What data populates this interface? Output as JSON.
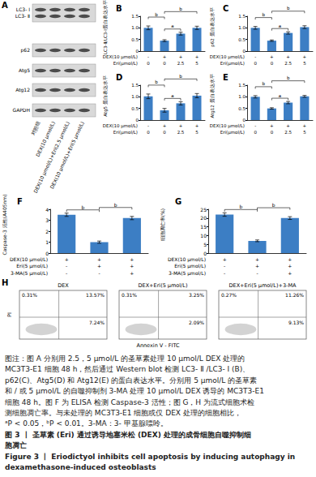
{
  "blot": {
    "title": "A",
    "bands": [
      "LC3- Ⅰ",
      "LC3- Ⅱ",
      "p62",
      "Atg5",
      "Atg12",
      "GAPDH"
    ],
    "lanes": [
      "对照组",
      "DEX(10 μmol/L)",
      "DEX(10 μmol/L)+Eri(2.5 μmol/L)",
      "DEX(10 μmol/L)+Eri(5 μmol/L)"
    ]
  },
  "chart_data": [
    {
      "type": "bar",
      "title": "B",
      "ylabel": "LC3-Ⅱ/LC3-Ⅰ蛋白表达水平",
      "categories": [
        null,
        null,
        null,
        null
      ],
      "conditions": [
        {
          "label": "DEX(10 μmol/L)",
          "values": [
            "-",
            "+",
            "+",
            "+"
          ]
        },
        {
          "label": "Eri(μmol/L)",
          "values": [
            "0",
            "0",
            "2.5",
            "5"
          ]
        }
      ],
      "values": [
        1.0,
        0.45,
        0.75,
        1.0
      ],
      "errors": [
        0.08,
        0.04,
        0.06,
        0.07
      ],
      "color": "#3c7ec4",
      "ylim": [
        0,
        1.5
      ],
      "yticks": [
        0,
        0.5,
        {
          "value": 1,
          "label": "1.0"
        },
        1.5
      ],
      "grid": false,
      "annotations": [
        {
          "from": 1,
          "to": 2,
          "label": "a"
        },
        {
          "from": 0,
          "to": 1,
          "label": "b"
        },
        {
          "from": 1,
          "to": 3,
          "label": "b"
        }
      ]
    },
    {
      "type": "bar",
      "title": "C",
      "ylabel": "p62 蛋白表达水平",
      "categories": [
        null,
        null,
        null,
        null
      ],
      "conditions": [
        {
          "label": "DEX(10 μmol/L)",
          "values": [
            "-",
            "+",
            "+",
            "+"
          ]
        },
        {
          "label": "Eri(μmol/L)",
          "values": [
            "0",
            "0",
            "2.5",
            "5"
          ]
        }
      ],
      "values": [
        1.0,
        0.45,
        0.78,
        1.03
      ],
      "errors": [
        0.06,
        0.03,
        0.05,
        0.06
      ],
      "color": "#3c7ec4",
      "ylim": [
        0,
        1.5
      ],
      "yticks": [
        0,
        0.5,
        {
          "value": 1,
          "label": "1.0"
        },
        1.5
      ],
      "grid": false,
      "annotations": [
        {
          "from": 1,
          "to": 2,
          "label": "a"
        },
        {
          "from": 0,
          "to": 1,
          "label": "b"
        },
        {
          "from": 1,
          "to": 3,
          "label": "b"
        }
      ]
    },
    {
      "type": "bar",
      "title": "D",
      "ylabel": "Atg5 蛋白表达水平",
      "categories": [
        null,
        null,
        null,
        null
      ],
      "conditions": [
        {
          "label": "DEX(10 μmol/L)",
          "values": [
            "-",
            "+",
            "+",
            "+"
          ]
        },
        {
          "label": "Eri(μmol/L)",
          "values": [
            "0",
            "0",
            "2.5",
            "5"
          ]
        }
      ],
      "values": [
        1.02,
        0.42,
        0.72,
        1.05
      ],
      "errors": [
        0.1,
        0.08,
        0.07,
        0.09
      ],
      "color": "#3c7ec4",
      "ylim": [
        0,
        1.5
      ],
      "yticks": [
        0,
        0.5,
        {
          "value": 1,
          "label": "1.0"
        },
        1.5
      ],
      "grid": false,
      "annotations": [
        {
          "from": 1,
          "to": 2,
          "label": "a"
        },
        {
          "from": 0,
          "to": 1,
          "label": "b"
        },
        {
          "from": 1,
          "to": 3,
          "label": "b"
        }
      ]
    },
    {
      "type": "bar",
      "title": "E",
      "ylabel": "Atg12 蛋白表达水平",
      "categories": [
        null,
        null,
        null,
        null
      ],
      "conditions": [
        {
          "label": "DEX(10 μmol/L)",
          "values": [
            "-",
            "+",
            "+",
            "+"
          ]
        },
        {
          "label": "Eri(μmol/L)",
          "values": [
            "0",
            "0",
            "2.5",
            "5"
          ]
        }
      ],
      "values": [
        1.0,
        0.5,
        0.75,
        1.02
      ],
      "errors": [
        0.05,
        0.03,
        0.05,
        0.04
      ],
      "color": "#3c7ec4",
      "ylim": [
        0,
        1.5
      ],
      "yticks": [
        0,
        0.5,
        {
          "value": 1,
          "label": "1.0"
        },
        1.5
      ],
      "grid": false,
      "annotations": [
        {
          "from": 1,
          "to": 2,
          "label": "a"
        },
        {
          "from": 0,
          "to": 1,
          "label": "b"
        },
        {
          "from": 1,
          "to": 3,
          "label": "b"
        }
      ]
    },
    {
      "type": "bar",
      "title": "F",
      "ylabel": "Caspase-3 活性(A405nm)",
      "categories": [
        null,
        null,
        null
      ],
      "conditions": [
        {
          "label": "DEX(10 μmol/L)",
          "values": [
            "+",
            "+",
            "+"
          ]
        },
        {
          "label": "Eri(5 μmol/L)",
          "values": [
            "-",
            "+",
            "+"
          ]
        },
        {
          "label": "3-MA(5 μmol/L)",
          "values": [
            "-",
            "-",
            "+"
          ]
        }
      ],
      "values": [
        3.5,
        1.0,
        3.2
      ],
      "errors": [
        0.15,
        0.1,
        0.15
      ],
      "color": "#3c7ec4",
      "ylim": [
        0,
        4
      ],
      "yticks": [
        0,
        1,
        2,
        3,
        4
      ],
      "grid": false,
      "annotations": [
        {
          "from": 0,
          "to": 1,
          "label": "b"
        },
        {
          "from": 1,
          "to": 2,
          "label": "b"
        }
      ]
    },
    {
      "type": "bar",
      "title": "G",
      "ylabel": "细胞凋亡率(%)",
      "categories": [
        null,
        null,
        null
      ],
      "conditions": [
        {
          "label": "DEX(10 μmol/L)",
          "values": [
            "+",
            "+",
            "+"
          ]
        },
        {
          "label": "Eri(5 μmol/L)",
          "values": [
            "-",
            "+",
            "+"
          ]
        },
        {
          "label": "3-MA(5 μmol/L)",
          "values": [
            "-",
            "-",
            "+"
          ]
        }
      ],
      "values": [
        22,
        7,
        20
      ],
      "errors": [
        1,
        0.5,
        0.8
      ],
      "color": "#3c7ec4",
      "ylim": [
        0,
        25
      ],
      "yticks": [
        0,
        5,
        10,
        15,
        20,
        25
      ],
      "grid": false,
      "annotations": [
        {
          "from": 0,
          "to": 1,
          "label": "b"
        },
        {
          "from": 1,
          "to": 2,
          "label": "b"
        }
      ]
    }
  ],
  "flow_cytometry": {
    "title": "H",
    "ylabel": "PI",
    "xlabel": "Annexin V - FITC",
    "plots": [
      {
        "title": "DEX",
        "upper_left": "0.31%",
        "upper_right": "13.57%",
        "lower_right": "7.24%"
      },
      {
        "title": "DEX+Eri(5 μmol/L)",
        "upper_left": "0.31%",
        "upper_right": "3.25%",
        "lower_right": "2.09%"
      },
      {
        "title": "DEX+Eri(5 μmol/L)+3-MA",
        "upper_left": "0.27%",
        "upper_right": "11.26%",
        "lower_right": "9.13%"
      }
    ]
  },
  "caption": {
    "notes": [
      "图注：图 A 分别用 2.5，5 μmol/L 的圣草素处理 10 μmol/L DEX 处理的",
      "MC3T3-E1 细胞 48 h，然后通过 Western blot 检测 LC3- Ⅱ /LC3- Ⅰ (B)、",
      "p62(C)、Atg5(D) 和 Atg12(E) 的蛋白表达水平。分别用 5 μmol/L 的圣草素",
      "和 / 或 5 μmol/L 的自噬抑制剂 3-MA 处理 10 μmol/L DEX 诱导的 MC3T3-E1",
      "细胞 48 h。图 F 为 ELISA 检测 Caspase-3 活性；图 G，H 为流式细胞术检",
      "测细胞凋亡率。与未处理的 MC3T3-E1 细胞或仅 DEX 处理的细胞相比，",
      "ᵃP < 0.05，ᵇP < 0.01。3-MA：3- 甲基腺嘌呤。"
    ],
    "title_zh": [
      "图 3 丨 圣草素 (Eri) 通过诱导地塞米松 (DEX) 处理的成骨细胞自噬抑制细",
      "胞凋亡"
    ],
    "title_en": [
      "Figure 3 丨 Eriodictyol inhibits cell apoptosis by inducing autophagy in",
      "dexamethasone-induced osteoblasts"
    ]
  }
}
